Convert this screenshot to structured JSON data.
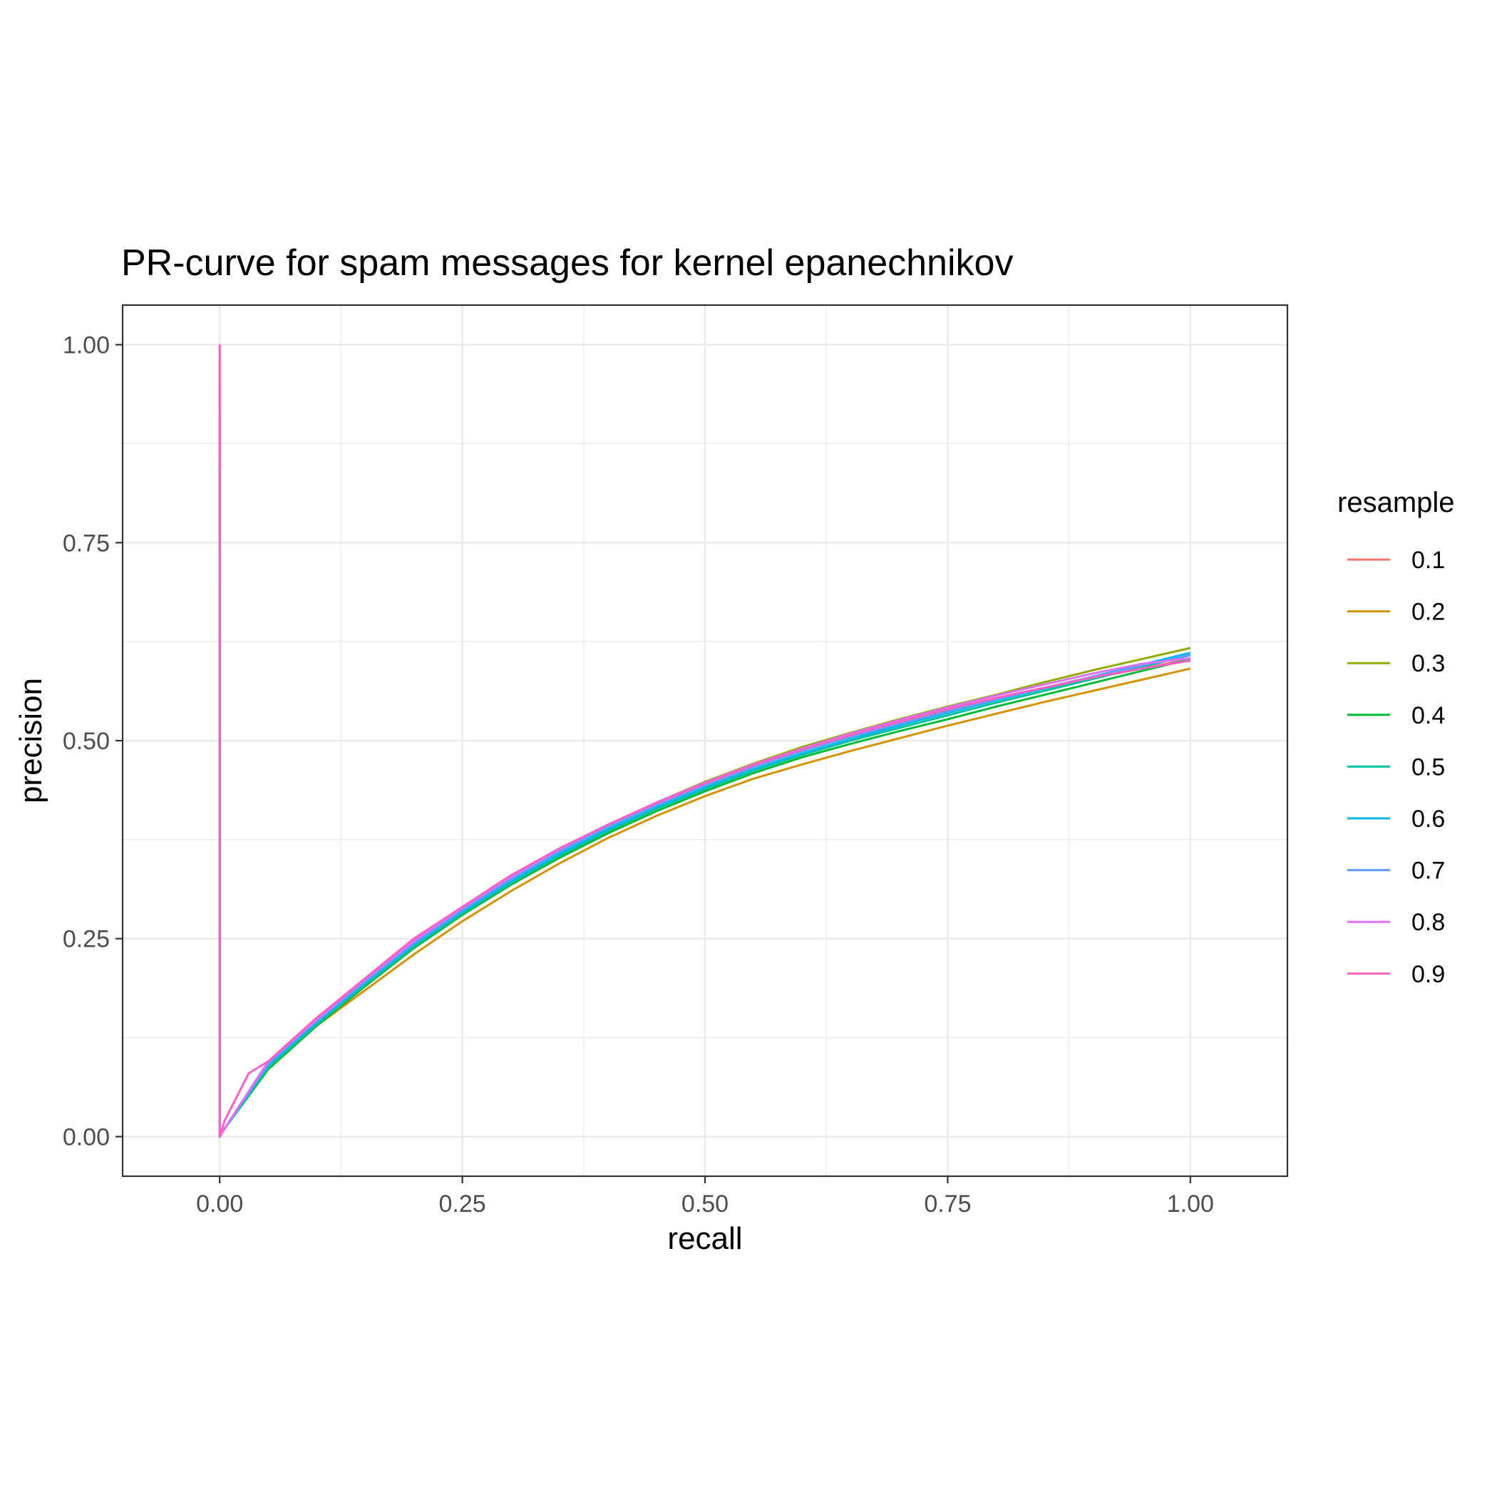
{
  "chart_data": {
    "type": "line",
    "title": "PR-curve for spam messages for kernel epanechnikov",
    "xlabel": "recall",
    "ylabel": "precision",
    "xlim": [
      -0.1,
      1.1
    ],
    "ylim": [
      -0.05,
      1.05
    ],
    "x_ticks": [
      0.0,
      0.25,
      0.5,
      0.75,
      1.0
    ],
    "x_tick_labels": [
      "0.00",
      "0.25",
      "0.50",
      "0.75",
      "1.00"
    ],
    "y_ticks": [
      0.0,
      0.25,
      0.5,
      0.75,
      1.0
    ],
    "y_tick_labels": [
      "0.00",
      "0.25",
      "0.50",
      "0.75",
      "1.00"
    ],
    "grid": true,
    "legend": {
      "title": "resample",
      "position": "right"
    },
    "series": [
      {
        "name": "0.1",
        "color": "#F8766D",
        "x": [
          0.0,
          0.0,
          0.005,
          0.05,
          0.1,
          0.15,
          0.2,
          0.25,
          0.3,
          0.35,
          0.4,
          0.45,
          0.5,
          0.55,
          0.6,
          0.65,
          0.7,
          0.75,
          0.8,
          0.85,
          0.9,
          0.95,
          1.0
        ],
        "y": [
          1.0,
          0.0,
          0.01,
          0.095,
          0.15,
          0.2,
          0.25,
          0.29,
          0.33,
          0.363,
          0.393,
          0.421,
          0.445,
          0.468,
          0.488,
          0.505,
          0.522,
          0.538,
          0.553,
          0.566,
          0.579,
          0.591,
          0.603
        ]
      },
      {
        "name": "0.2",
        "color": "#D39200",
        "x": [
          0.0,
          0.0,
          0.005,
          0.05,
          0.1,
          0.15,
          0.2,
          0.25,
          0.3,
          0.35,
          0.4,
          0.45,
          0.5,
          0.55,
          0.6,
          0.65,
          0.7,
          0.75,
          0.8,
          0.85,
          0.9,
          0.95,
          1.0
        ],
        "y": [
          0.98,
          0.0,
          0.01,
          0.09,
          0.14,
          0.185,
          0.23,
          0.272,
          0.31,
          0.345,
          0.377,
          0.405,
          0.43,
          0.452,
          0.47,
          0.487,
          0.503,
          0.519,
          0.534,
          0.549,
          0.563,
          0.577,
          0.591
        ]
      },
      {
        "name": "0.3",
        "color": "#93AA00",
        "x": [
          0.0,
          0.0,
          0.005,
          0.05,
          0.1,
          0.15,
          0.2,
          0.25,
          0.3,
          0.35,
          0.4,
          0.45,
          0.5,
          0.55,
          0.6,
          0.65,
          0.7,
          0.75,
          0.8,
          0.85,
          0.9,
          0.95,
          1.0
        ],
        "y": [
          0.92,
          0.0,
          0.01,
          0.09,
          0.145,
          0.195,
          0.245,
          0.287,
          0.327,
          0.362,
          0.393,
          0.422,
          0.448,
          0.471,
          0.492,
          0.51,
          0.527,
          0.543,
          0.558,
          0.574,
          0.589,
          0.603,
          0.617
        ]
      },
      {
        "name": "0.4",
        "color": "#00BA38",
        "x": [
          0.0,
          0.0,
          0.005,
          0.05,
          0.1,
          0.15,
          0.2,
          0.25,
          0.3,
          0.35,
          0.4,
          0.45,
          0.5,
          0.55,
          0.6,
          0.65,
          0.7,
          0.75,
          0.8,
          0.85,
          0.9,
          0.95,
          1.0
        ],
        "y": [
          0.85,
          0.0,
          0.01,
          0.085,
          0.14,
          0.19,
          0.238,
          0.28,
          0.318,
          0.352,
          0.383,
          0.411,
          0.436,
          0.459,
          0.479,
          0.496,
          0.512,
          0.527,
          0.543,
          0.558,
          0.573,
          0.588,
          0.603
        ]
      },
      {
        "name": "0.5",
        "color": "#00C19F",
        "x": [
          0.0,
          0.0,
          0.005,
          0.05,
          0.1,
          0.15,
          0.2,
          0.25,
          0.3,
          0.35,
          0.4,
          0.45,
          0.5,
          0.55,
          0.6,
          0.65,
          0.7,
          0.75,
          0.8,
          0.85,
          0.9,
          0.95,
          1.0
        ],
        "y": [
          0.76,
          0.0,
          0.01,
          0.088,
          0.142,
          0.192,
          0.24,
          0.282,
          0.32,
          0.355,
          0.386,
          0.414,
          0.439,
          0.462,
          0.482,
          0.5,
          0.516,
          0.532,
          0.548,
          0.563,
          0.578,
          0.593,
          0.608
        ]
      },
      {
        "name": "0.6",
        "color": "#00B9E3",
        "x": [
          0.0,
          0.0,
          0.005,
          0.05,
          0.1,
          0.15,
          0.2,
          0.25,
          0.3,
          0.35,
          0.4,
          0.45,
          0.5,
          0.55,
          0.6,
          0.65,
          0.7,
          0.75,
          0.8,
          0.85,
          0.9,
          0.95,
          1.0
        ],
        "y": [
          0.75,
          0.0,
          0.01,
          0.09,
          0.144,
          0.194,
          0.242,
          0.284,
          0.322,
          0.357,
          0.388,
          0.416,
          0.441,
          0.464,
          0.484,
          0.502,
          0.519,
          0.535,
          0.551,
          0.566,
          0.581,
          0.596,
          0.611
        ]
      },
      {
        "name": "0.7",
        "color": "#619CFF",
        "x": [
          0.0,
          0.0,
          0.005,
          0.05,
          0.1,
          0.15,
          0.2,
          0.25,
          0.3,
          0.35,
          0.4,
          0.45,
          0.5,
          0.55,
          0.6,
          0.65,
          0.7,
          0.75,
          0.8,
          0.85,
          0.9,
          0.95,
          1.0
        ],
        "y": [
          0.7,
          0.0,
          0.01,
          0.092,
          0.146,
          0.196,
          0.244,
          0.286,
          0.325,
          0.36,
          0.391,
          0.419,
          0.444,
          0.467,
          0.487,
          0.505,
          0.521,
          0.537,
          0.552,
          0.567,
          0.581,
          0.595,
          0.608
        ]
      },
      {
        "name": "0.8",
        "color": "#DB72FB",
        "x": [
          0.0,
          0.0,
          0.005,
          0.05,
          0.1,
          0.15,
          0.2,
          0.25,
          0.3,
          0.35,
          0.4,
          0.45,
          0.5,
          0.55,
          0.6,
          0.65,
          0.7,
          0.75,
          0.8,
          0.85,
          0.9,
          0.95,
          1.0
        ],
        "y": [
          0.95,
          0.0,
          0.01,
          0.095,
          0.148,
          0.199,
          0.247,
          0.289,
          0.328,
          0.363,
          0.394,
          0.422,
          0.447,
          0.47,
          0.49,
          0.509,
          0.526,
          0.542,
          0.557,
          0.571,
          0.585,
          0.597,
          0.604
        ]
      },
      {
        "name": "0.9",
        "color": "#FF61C3",
        "x": [
          0.0,
          0.0,
          0.005,
          0.03,
          0.05,
          0.1,
          0.15,
          0.2,
          0.25,
          0.3,
          0.35,
          0.4,
          0.45,
          0.5,
          0.55,
          0.6,
          0.65,
          0.7,
          0.75,
          0.8,
          0.85,
          0.9,
          0.95,
          1.0
        ],
        "y": [
          1.0,
          0.0,
          0.02,
          0.08,
          0.095,
          0.15,
          0.2,
          0.25,
          0.29,
          0.33,
          0.364,
          0.394,
          0.421,
          0.446,
          0.469,
          0.489,
          0.507,
          0.524,
          0.54,
          0.554,
          0.567,
          0.58,
          0.591,
          0.601
        ]
      }
    ]
  }
}
